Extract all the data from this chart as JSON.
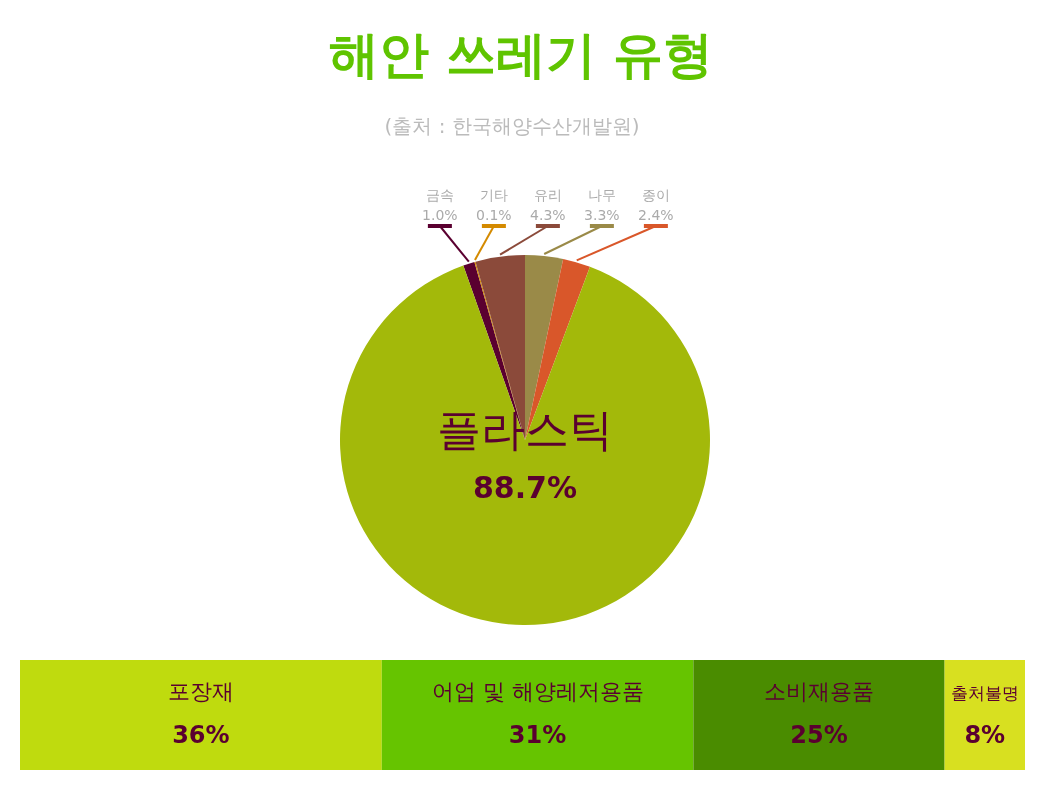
{
  "chart_data": [
    {
      "type": "pie",
      "title": "해안 쓰레기 유형",
      "subtitle": "(출처 : 한국해양수산개발원)",
      "categories": [
        "금속",
        "기타",
        "유리",
        "나무",
        "종이",
        "플라스틱"
      ],
      "values": [
        1.0,
        0.1,
        4.3,
        3.3,
        2.4,
        88.7
      ],
      "colors": [
        "#5a0030",
        "#d48a00",
        "#8b4a3a",
        "#9a8a48",
        "#d9572a",
        "#a3b90a"
      ],
      "value_labels": [
        "1.0%",
        "0.1%",
        "4.3%",
        "3.3%",
        "2.4%",
        "88.7%"
      ]
    },
    {
      "type": "bar",
      "orientation": "horizontal",
      "stacked": true,
      "categories": [
        null
      ],
      "xlim": [
        0,
        100
      ],
      "tick_labels": false,
      "series": [
        {
          "name": "포장재",
          "color": "#bfdb0e",
          "values": [
            36
          ],
          "value_labels": [
            "36%"
          ]
        },
        {
          "name": "어업 및 해양레저용품",
          "color": "#66c400",
          "values": [
            31
          ],
          "value_labels": [
            "31%"
          ]
        },
        {
          "name": "소비재용품",
          "color": "#4a8c00",
          "values": [
            25
          ],
          "value_labels": [
            "25%"
          ]
        },
        {
          "name": "출처불명",
          "color": "#d8e020",
          "values": [
            8
          ],
          "value_labels": [
            "8%"
          ]
        }
      ]
    }
  ]
}
